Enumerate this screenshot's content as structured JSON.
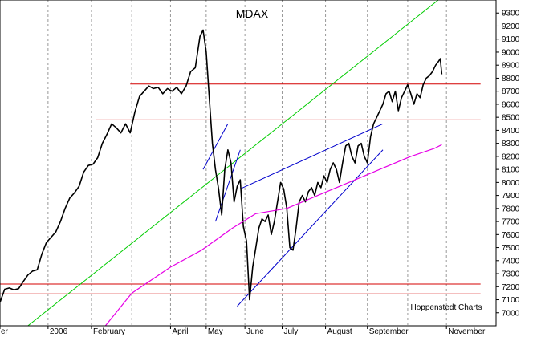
{
  "chart_data": {
    "type": "line",
    "title": "MDAX",
    "credit": "Hoppenstedt Charts",
    "xlabel": "",
    "ylabel": "",
    "ylim": [
      6900,
      9400
    ],
    "y_ticks": [
      7000,
      7100,
      7200,
      7300,
      7400,
      7500,
      7600,
      7700,
      7800,
      7900,
      8000,
      8100,
      8200,
      8300,
      8400,
      8500,
      8600,
      8700,
      8800,
      8900,
      9000,
      9100,
      9200,
      9300
    ],
    "x_range": [
      0,
      320
    ],
    "month_labels": [
      {
        "label": "er",
        "x": 0
      },
      {
        "label": "2006",
        "x": 31
      },
      {
        "label": "February",
        "x": 59
      },
      {
        "label": "April",
        "x": 110
      },
      {
        "label": "May",
        "x": 133
      },
      {
        "label": "June",
        "x": 158
      },
      {
        "label": "July",
        "x": 182
      },
      {
        "label": "August",
        "x": 210
      },
      {
        "label": "September",
        "x": 237
      },
      {
        "label": "November",
        "x": 288
      }
    ],
    "grid": {
      "vertical_dashed": true,
      "x_positions": [
        31,
        59,
        85,
        110,
        133,
        158,
        182,
        210,
        237,
        263,
        288
      ]
    },
    "series": [
      {
        "values": [
          [
            0,
            7080
          ],
          [
            3,
            7180
          ],
          [
            6,
            7190
          ],
          [
            9,
            7175
          ],
          [
            12,
            7185
          ],
          [
            15,
            7240
          ],
          [
            18,
            7290
          ],
          [
            21,
            7320
          ],
          [
            24,
            7330
          ],
          [
            27,
            7450
          ],
          [
            30,
            7540
          ],
          [
            33,
            7580
          ],
          [
            36,
            7620
          ],
          [
            39,
            7700
          ],
          [
            42,
            7800
          ],
          [
            45,
            7880
          ],
          [
            48,
            7920
          ],
          [
            51,
            7970
          ],
          [
            54,
            8080
          ],
          [
            57,
            8130
          ],
          [
            60,
            8140
          ],
          [
            63,
            8190
          ],
          [
            66,
            8300
          ],
          [
            69,
            8370
          ],
          [
            72,
            8450
          ],
          [
            75,
            8420
          ],
          [
            78,
            8380
          ],
          [
            81,
            8450
          ],
          [
            84,
            8380
          ],
          [
            87,
            8540
          ],
          [
            90,
            8660
          ],
          [
            93,
            8700
          ],
          [
            96,
            8740
          ],
          [
            99,
            8720
          ],
          [
            102,
            8730
          ],
          [
            105,
            8680
          ],
          [
            108,
            8720
          ],
          [
            111,
            8700
          ],
          [
            114,
            8730
          ],
          [
            117,
            8680
          ],
          [
            120,
            8740
          ],
          [
            123,
            8850
          ],
          [
            126,
            8880
          ],
          [
            129,
            9120
          ],
          [
            131,
            9170
          ],
          [
            133,
            9000
          ],
          [
            135,
            8650
          ],
          [
            137,
            8300
          ],
          [
            139,
            8100
          ],
          [
            141,
            7950
          ],
          [
            143,
            7750
          ],
          [
            145,
            8100
          ],
          [
            147,
            8250
          ],
          [
            149,
            8150
          ],
          [
            151,
            7850
          ],
          [
            153,
            7970
          ],
          [
            155,
            8020
          ],
          [
            157,
            7660
          ],
          [
            159,
            7550
          ],
          [
            161,
            7100
          ],
          [
            163,
            7350
          ],
          [
            165,
            7500
          ],
          [
            167,
            7650
          ],
          [
            169,
            7720
          ],
          [
            171,
            7700
          ],
          [
            173,
            7750
          ],
          [
            175,
            7600
          ],
          [
            177,
            7700
          ],
          [
            179,
            7850
          ],
          [
            181,
            8000
          ],
          [
            183,
            7950
          ],
          [
            185,
            7800
          ],
          [
            187,
            7500
          ],
          [
            189,
            7480
          ],
          [
            191,
            7650
          ],
          [
            193,
            7850
          ],
          [
            195,
            7900
          ],
          [
            197,
            7850
          ],
          [
            199,
            7930
          ],
          [
            201,
            7960
          ],
          [
            203,
            7900
          ],
          [
            205,
            8000
          ],
          [
            207,
            7960
          ],
          [
            209,
            8050
          ],
          [
            211,
            8000
          ],
          [
            213,
            8100
          ],
          [
            215,
            8150
          ],
          [
            217,
            8100
          ],
          [
            219,
            8000
          ],
          [
            221,
            8150
          ],
          [
            223,
            8280
          ],
          [
            225,
            8300
          ],
          [
            227,
            8200
          ],
          [
            229,
            8150
          ],
          [
            231,
            8280
          ],
          [
            233,
            8300
          ],
          [
            235,
            8200
          ],
          [
            237,
            8150
          ],
          [
            239,
            8350
          ],
          [
            241,
            8450
          ],
          [
            243,
            8500
          ],
          [
            245,
            8550
          ],
          [
            247,
            8600
          ],
          [
            249,
            8680
          ],
          [
            251,
            8700
          ],
          [
            253,
            8620
          ],
          [
            255,
            8700
          ],
          [
            257,
            8550
          ],
          [
            259,
            8650
          ],
          [
            261,
            8700
          ],
          [
            263,
            8750
          ],
          [
            265,
            8680
          ],
          [
            267,
            8600
          ],
          [
            269,
            8680
          ],
          [
            271,
            8650
          ],
          [
            273,
            8750
          ],
          [
            275,
            8800
          ],
          [
            277,
            8820
          ],
          [
            279,
            8850
          ],
          [
            281,
            8900
          ],
          [
            283,
            8930
          ],
          [
            284,
            8950
          ],
          [
            285,
            8830
          ]
        ],
        "color": "#000000"
      },
      {
        "values": [
          [
            68,
            6900
          ],
          [
            85,
            7150
          ],
          [
            110,
            7350
          ],
          [
            130,
            7480
          ],
          [
            150,
            7650
          ],
          [
            165,
            7760
          ],
          [
            185,
            7800
          ],
          [
            205,
            7900
          ],
          [
            225,
            8000
          ],
          [
            245,
            8100
          ],
          [
            265,
            8200
          ],
          [
            280,
            8260
          ],
          [
            285,
            8290
          ]
        ],
        "color": "#e600e6"
      }
    ],
    "lines": [
      {
        "kind": "horizontal",
        "y": 8755,
        "x0": 84,
        "x1": 310,
        "color": "#d40000"
      },
      {
        "kind": "horizontal",
        "y": 8480,
        "x0": 62,
        "x1": 310,
        "color": "#d40000"
      },
      {
        "kind": "horizontal",
        "y": 7220,
        "x0": 0,
        "x1": 310,
        "color": "#d40000"
      },
      {
        "kind": "horizontal",
        "y": 7145,
        "x0": 0,
        "x1": 310,
        "color": "#d40000"
      },
      {
        "kind": "trend",
        "points": [
          [
            18,
            6900
          ],
          [
            288,
            9450
          ]
        ],
        "color": "#00cc00"
      },
      {
        "kind": "trend",
        "points": [
          [
            153,
            7050
          ],
          [
            247,
            8250
          ]
        ],
        "color": "#0000cc"
      },
      {
        "kind": "trend",
        "points": [
          [
            155,
            7950
          ],
          [
            247,
            8450
          ]
        ],
        "color": "#0000cc"
      },
      {
        "kind": "trend",
        "points": [
          [
            131,
            8100
          ],
          [
            147,
            8450
          ]
        ],
        "color": "#0000cc"
      },
      {
        "kind": "trend",
        "points": [
          [
            139,
            7700
          ],
          [
            155,
            8250
          ]
        ],
        "color": "#0000cc"
      }
    ],
    "colors": {
      "price": "#000000",
      "moving_average": "#e600e6",
      "support_resistance": "#d40000",
      "trend_up": "#00cc00",
      "channel": "#0000cc",
      "grid": "#999999"
    }
  }
}
